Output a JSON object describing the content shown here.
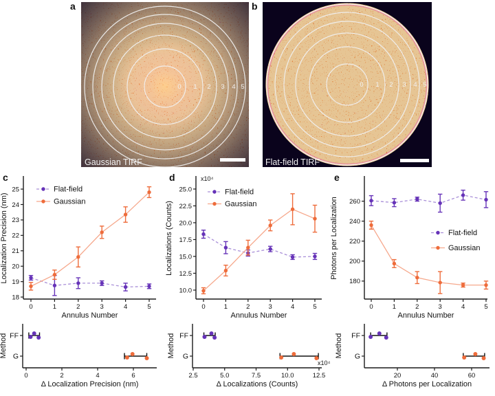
{
  "figure_bg": "#ffffff",
  "panels": {
    "a": {
      "letter": "a",
      "label": "Gaussian TIRF",
      "ring_numbers": [
        "0",
        "1",
        "2",
        "3",
        "4",
        "5"
      ]
    },
    "b": {
      "letter": "b",
      "label": "Flat-field TIRF",
      "ring_numbers": [
        "0",
        "1",
        "2",
        "3",
        "4",
        "5"
      ]
    }
  },
  "colors": {
    "Flat-field": {
      "marker": "#6633b8",
      "line": "#a98fd8"
    },
    "Gaussian": {
      "marker": "#ee6c3b",
      "line": "#f6a88c"
    },
    "axis": "#1a1a1a",
    "whisker": "#111111"
  },
  "chart_data": [
    {
      "id": "c",
      "letter": "c",
      "type": "line",
      "xlabel": "Annulus Number",
      "ylabel": "Localization Precision (nm)",
      "x": [
        0,
        1,
        2,
        3,
        4,
        5
      ],
      "xticks": [
        "0",
        "1",
        "2",
        "3",
        "4",
        "5"
      ],
      "ytick_values": [
        18,
        19,
        20,
        21,
        22,
        23,
        24,
        25
      ],
      "yticks": [
        "18",
        "19",
        "20",
        "21",
        "22",
        "23",
        "24",
        "25"
      ],
      "ylim": [
        17.87,
        25.76
      ],
      "legend_position": "top-left",
      "series": [
        {
          "name": "Flat-field",
          "line_style": "dashed",
          "values": [
            19.25,
            18.75,
            18.9,
            18.9,
            18.65,
            18.7
          ],
          "errors": [
            0.15,
            0.65,
            0.35,
            0.15,
            0.25,
            0.15
          ]
        },
        {
          "name": "Gaussian",
          "line_style": "solid",
          "values": [
            18.7,
            19.45,
            20.6,
            22.2,
            23.35,
            24.8
          ],
          "errors": [
            0.25,
            0.3,
            0.65,
            0.4,
            0.5,
            0.35
          ]
        }
      ]
    },
    {
      "id": "d",
      "letter": "d",
      "type": "line",
      "xlabel": "Annulus Number",
      "ylabel": "Localizations (Counts)",
      "offset_label": "x10⁴",
      "x": [
        0,
        1,
        2,
        3,
        4,
        5
      ],
      "xticks": [
        "0",
        "1",
        "2",
        "3",
        "4",
        "5"
      ],
      "ytick_values": [
        10,
        12.5,
        15,
        17.5,
        20,
        22.5,
        25
      ],
      "yticks": [
        "10.0",
        "12.5",
        "15.0",
        "17.5",
        "20.0",
        "22.5",
        "25.0"
      ],
      "ylim": [
        8.67,
        26.73
      ],
      "legend_position": "top-left",
      "series": [
        {
          "name": "Flat-field",
          "line_style": "dashed",
          "values": [
            18.3,
            16.3,
            15.5,
            16.1,
            14.9,
            15.0
          ],
          "errors": [
            0.6,
            0.9,
            0.45,
            0.4,
            0.35,
            0.45
          ]
        },
        {
          "name": "Gaussian",
          "line_style": "solid",
          "values": [
            9.9,
            12.9,
            16.3,
            19.6,
            22.0,
            20.6
          ],
          "errors": [
            0.45,
            0.8,
            1.1,
            0.8,
            2.3,
            2.0
          ]
        }
      ]
    },
    {
      "id": "e",
      "letter": "e",
      "type": "line",
      "xlabel": "Annulus Number",
      "ylabel": "Photons per Localization",
      "x": [
        0,
        1,
        2,
        3,
        4,
        5
      ],
      "xticks": [
        "0",
        "1",
        "2",
        "3",
        "4",
        "5"
      ],
      "ytick_values": [
        180,
        200,
        220,
        240,
        260
      ],
      "yticks": [
        "180",
        "200",
        "220",
        "240",
        "260"
      ],
      "ylim": [
        162,
        283.8
      ],
      "legend_position": "middle-right",
      "series": [
        {
          "name": "Flat-field",
          "line_style": "dashed",
          "values": [
            260.5,
            258.5,
            262,
            258,
            266,
            261.5
          ],
          "errors": [
            5,
            4,
            2,
            9,
            5,
            8
          ]
        },
        {
          "name": "Gaussian",
          "line_style": "solid",
          "values": [
            236,
            197.5,
            183.5,
            178.5,
            176,
            176
          ],
          "errors": [
            4,
            4,
            6,
            11,
            2,
            4
          ]
        }
      ]
    },
    {
      "id": "f",
      "type": "strip",
      "xlabel": "Δ Localization Precision (nm)",
      "ylabel": "Method",
      "categories": [
        "FF",
        "G"
      ],
      "xtick_values": [
        0,
        2,
        4,
        6
      ],
      "xticks": [
        "0",
        "2",
        "4",
        "6"
      ],
      "groups": [
        {
          "name": "FF",
          "series": "Flat-field",
          "points": [
            0.25,
            0.45,
            0.7
          ],
          "whisker": [
            0.15,
            0.75
          ]
        },
        {
          "name": "G",
          "series": "Gaussian",
          "points": [
            5.65,
            5.95,
            6.75
          ],
          "whisker": [
            5.5,
            6.75
          ]
        }
      ]
    },
    {
      "id": "g",
      "type": "strip",
      "xlabel": "Δ Localizations (Counts)",
      "ylabel": "Method",
      "offset_label": "x10⁴",
      "categories": [
        "FF",
        "G"
      ],
      "xtick_values": [
        2.5,
        5,
        7.5,
        10,
        12.5
      ],
      "xticks": [
        "2.5",
        "5.0",
        "7.5",
        "10.0",
        "12.5"
      ],
      "groups": [
        {
          "name": "FF",
          "series": "Flat-field",
          "points": [
            3.4,
            3.95,
            4.2
          ],
          "whisker": [
            3.35,
            4.25
          ]
        },
        {
          "name": "G",
          "series": "Gaussian",
          "points": [
            9.5,
            10.5,
            12.3
          ],
          "whisker": [
            9.4,
            12.45
          ]
        }
      ]
    },
    {
      "id": "h",
      "type": "strip",
      "xlabel": "Δ Photons per Localization",
      "ylabel": "Method",
      "categories": [
        "FF",
        "G"
      ],
      "xtick_values": [
        20,
        40,
        60
      ],
      "xticks": [
        "20",
        "40",
        "60"
      ],
      "groups": [
        {
          "name": "FF",
          "series": "Flat-field",
          "points": [
            5.6,
            10.3,
            14
          ],
          "whisker": [
            5.6,
            14.4
          ]
        },
        {
          "name": "G",
          "series": "Gaussian",
          "points": [
            56,
            62,
            66.5
          ],
          "whisker": [
            55.5,
            67
          ]
        }
      ]
    }
  ]
}
